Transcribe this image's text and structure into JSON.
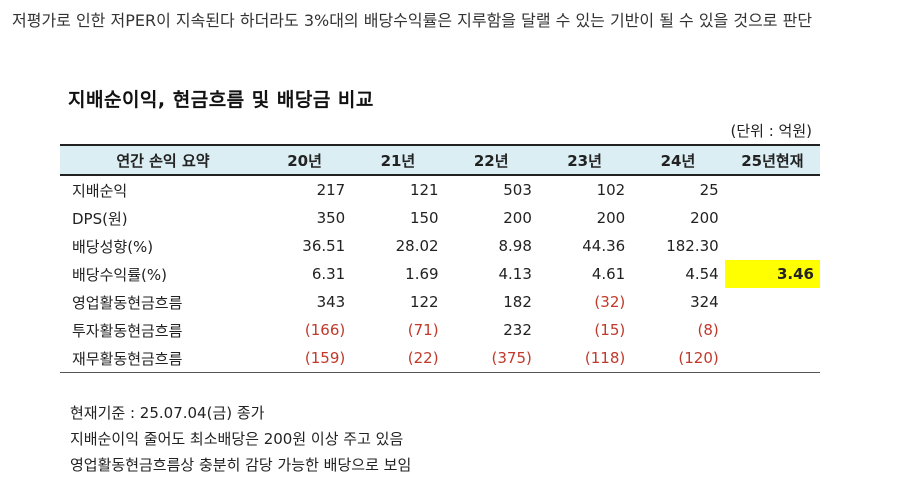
{
  "intro": "저평가로 인한 저PER이 지속된다 하더라도 3%대의 배당수익률은 지루함을 달랠 수 있는 기반이 될 수 있을 것으로 판단",
  "table_title": "지배순이익, 현금흐름 및 배당금 비교",
  "unit": "(단위 : 억원)",
  "headers": [
    "연간 손익 요약",
    "20년",
    "21년",
    "22년",
    "23년",
    "24년",
    "25년현재"
  ],
  "rows": [
    {
      "label": "지배순익",
      "cells": [
        {
          "v": "217"
        },
        {
          "v": "121"
        },
        {
          "v": "503"
        },
        {
          "v": "102"
        },
        {
          "v": "25"
        },
        {
          "v": ""
        }
      ]
    },
    {
      "label": "DPS(원)",
      "cells": [
        {
          "v": "350"
        },
        {
          "v": "150"
        },
        {
          "v": "200"
        },
        {
          "v": "200"
        },
        {
          "v": "200"
        },
        {
          "v": ""
        }
      ]
    },
    {
      "label": "배당성향(%)",
      "cells": [
        {
          "v": "36.51"
        },
        {
          "v": "28.02"
        },
        {
          "v": "8.98"
        },
        {
          "v": "44.36"
        },
        {
          "v": "182.30"
        },
        {
          "v": ""
        }
      ]
    },
    {
      "label": "배당수익률(%)",
      "cells": [
        {
          "v": "6.31"
        },
        {
          "v": "1.69"
        },
        {
          "v": "4.13"
        },
        {
          "v": "4.61"
        },
        {
          "v": "4.54"
        },
        {
          "v": "3.46",
          "hl": true
        }
      ]
    },
    {
      "label": "영업활동현금흐름",
      "cells": [
        {
          "v": "343"
        },
        {
          "v": "122"
        },
        {
          "v": "182"
        },
        {
          "v": "(32)",
          "neg": true
        },
        {
          "v": "324"
        },
        {
          "v": ""
        }
      ]
    },
    {
      "label": "투자활동현금흐름",
      "cells": [
        {
          "v": "(166)",
          "neg": true
        },
        {
          "v": "(71)",
          "neg": true
        },
        {
          "v": "232"
        },
        {
          "v": "(15)",
          "neg": true
        },
        {
          "v": "(8)",
          "neg": true
        },
        {
          "v": ""
        }
      ]
    },
    {
      "label": "재무활동현금흐름",
      "cells": [
        {
          "v": "(159)",
          "neg": true
        },
        {
          "v": "(22)",
          "neg": true
        },
        {
          "v": "(375)",
          "neg": true
        },
        {
          "v": "(118)",
          "neg": true
        },
        {
          "v": "(120)",
          "neg": true
        },
        {
          "v": ""
        }
      ]
    }
  ],
  "notes": [
    "현재기준 : 25.07.04(금) 종가",
    "지배순이익 줄어도 최소배당은 200원 이상 주고 있음",
    "영업활동현금흐름상 충분히 감당 가능한 배당으로 보임"
  ],
  "colors": {
    "header_bg": "#dbeef4",
    "highlight": "#ffff00",
    "negative": "#c0392b"
  }
}
